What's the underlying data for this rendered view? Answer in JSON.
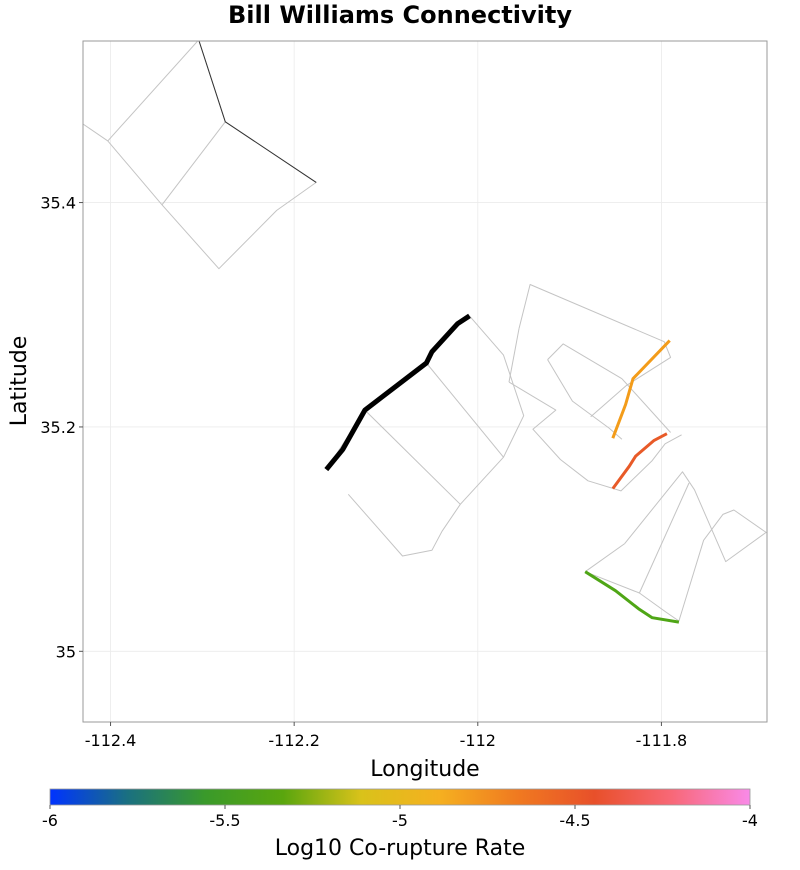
{
  "chart_data": {
    "type": "map",
    "title": "Bill Williams Connectivity",
    "xlabel": "Longitude",
    "ylabel": "Latitude",
    "xlim": [
      -112.43,
      -111.685
    ],
    "ylim": [
      34.937,
      35.544
    ],
    "x_ticks": [
      {
        "value": -112.4,
        "label": "-112.4"
      },
      {
        "value": -112.2,
        "label": "-112.2"
      },
      {
        "value": -112.0,
        "label": "-112"
      },
      {
        "value": -111.8,
        "label": "-111.8"
      }
    ],
    "y_ticks": [
      {
        "value": 35.4,
        "label": "35.4"
      },
      {
        "value": 35.2,
        "label": "35.2"
      },
      {
        "value": 35.0,
        "label": "35"
      }
    ],
    "grid": true,
    "fault_polygons": [
      {
        "name": "nw-section-a",
        "points": [
          [
            -112.43,
            35.47
          ],
          [
            -112.403,
            35.455
          ],
          [
            -112.344,
            35.398
          ],
          [
            -112.282,
            35.341
          ],
          [
            -112.219,
            35.393
          ],
          [
            -112.176,
            35.418
          ],
          [
            -112.275,
            35.472
          ],
          [
            -112.304,
            35.545
          ]
        ]
      },
      {
        "name": "nw-section-mid",
        "points": [
          [
            -112.403,
            35.455
          ],
          [
            -112.304,
            35.545
          ]
        ]
      },
      {
        "name": "nw-section-mid2",
        "points": [
          [
            -112.344,
            35.398
          ],
          [
            -112.275,
            35.472
          ]
        ]
      },
      {
        "name": "central-a",
        "points": [
          [
            -112.165,
            35.162
          ],
          [
            -112.123,
            35.215
          ],
          [
            -112.056,
            35.257
          ],
          [
            -112.05,
            35.267
          ],
          [
            -112.022,
            35.292
          ],
          [
            -112.009,
            35.299
          ],
          [
            -111.972,
            35.264
          ],
          [
            -111.95,
            35.21
          ],
          [
            -111.972,
            35.173
          ],
          [
            -112.019,
            35.131
          ],
          [
            -112.039,
            35.107
          ],
          [
            -112.05,
            35.09
          ],
          [
            -112.082,
            35.085
          ],
          [
            -112.141,
            35.14
          ]
        ]
      },
      {
        "name": "central-b",
        "points": [
          [
            -112.123,
            35.215
          ],
          [
            -112.019,
            35.131
          ]
        ]
      },
      {
        "name": "central-c",
        "points": [
          [
            -112.056,
            35.257
          ],
          [
            -111.972,
            35.173
          ]
        ]
      },
      {
        "name": "east-a",
        "points": [
          [
            -111.955,
            35.288
          ],
          [
            -111.943,
            35.327
          ],
          [
            -111.797,
            35.276
          ],
          [
            -111.79,
            35.262
          ],
          [
            -111.838,
            35.237
          ],
          [
            -111.877,
            35.209
          ]
        ]
      },
      {
        "name": "east-b",
        "points": [
          [
            -111.966,
            35.24
          ],
          [
            -111.955,
            35.288
          ]
        ]
      },
      {
        "name": "east-c",
        "points": [
          [
            -111.966,
            35.24
          ],
          [
            -111.915,
            35.215
          ],
          [
            -111.94,
            35.198
          ],
          [
            -111.91,
            35.171
          ],
          [
            -111.88,
            35.152
          ],
          [
            -111.844,
            35.143
          ],
          [
            -111.81,
            35.17
          ],
          [
            -111.796,
            35.185
          ],
          [
            -111.778,
            35.193
          ]
        ]
      },
      {
        "name": "east-d",
        "points": [
          [
            -111.924,
            35.26
          ],
          [
            -111.907,
            35.274
          ],
          [
            -111.843,
            35.243
          ]
        ]
      },
      {
        "name": "east-e",
        "points": [
          [
            -111.924,
            35.26
          ],
          [
            -111.897,
            35.223
          ],
          [
            -111.857,
            35.199
          ],
          [
            -111.843,
            35.189
          ]
        ]
      },
      {
        "name": "east-f",
        "points": [
          [
            -111.843,
            35.243
          ],
          [
            -111.79,
            35.195
          ]
        ]
      },
      {
        "name": "south-a",
        "points": [
          [
            -111.883,
            35.071
          ],
          [
            -111.824,
            35.052
          ],
          [
            -111.795,
            35.035
          ],
          [
            -111.781,
            35.027
          ],
          [
            -111.754,
            35.099
          ],
          [
            -111.733,
            35.122
          ],
          [
            -111.721,
            35.126
          ],
          [
            -111.686,
            35.106
          ],
          [
            -111.73,
            35.08
          ],
          [
            -111.764,
            35.144
          ],
          [
            -111.777,
            35.16
          ],
          [
            -111.84,
            35.096
          ]
        ]
      },
      {
        "name": "south-b",
        "points": [
          [
            -111.84,
            35.096
          ],
          [
            -111.883,
            35.071
          ]
        ]
      },
      {
        "name": "south-c",
        "points": [
          [
            -111.824,
            35.052
          ],
          [
            -111.77,
            35.15
          ]
        ]
      }
    ],
    "ruptures": [
      {
        "name": "bill-williams-source",
        "rate": null,
        "color": "#000000",
        "width": 5,
        "points": [
          [
            -112.165,
            35.162
          ],
          [
            -112.147,
            35.18
          ],
          [
            -112.123,
            35.215
          ],
          [
            -112.056,
            35.257
          ],
          [
            -112.05,
            35.267
          ],
          [
            -112.022,
            35.292
          ],
          [
            -112.009,
            35.299
          ]
        ]
      },
      {
        "name": "nw-trace",
        "rate": null,
        "color": "#333333",
        "width": 1,
        "points": [
          [
            -112.304,
            35.545
          ],
          [
            -112.275,
            35.472
          ],
          [
            -112.176,
            35.418
          ]
        ]
      },
      {
        "name": "east-trace-orange",
        "rate": -4.8,
        "color": "#F39C1A",
        "width": 3,
        "points": [
          [
            -111.853,
            35.19
          ],
          [
            -111.839,
            35.22
          ],
          [
            -111.831,
            35.243
          ],
          [
            -111.791,
            35.277
          ]
        ]
      },
      {
        "name": "east-trace-red",
        "rate": -4.5,
        "color": "#E85A28",
        "width": 3,
        "points": [
          [
            -111.853,
            35.145
          ],
          [
            -111.835,
            35.165
          ],
          [
            -111.828,
            35.174
          ],
          [
            -111.808,
            35.188
          ],
          [
            -111.794,
            35.194
          ]
        ]
      },
      {
        "name": "south-trace-green",
        "rate": -5.5,
        "color": "#4FA616",
        "width": 3,
        "points": [
          [
            -111.883,
            35.071
          ],
          [
            -111.85,
            35.054
          ],
          [
            -111.825,
            35.038
          ],
          [
            -111.81,
            35.03
          ],
          [
            -111.781,
            35.026
          ]
        ]
      }
    ],
    "colorbar": {
      "label": "Log10 Co-rupture Rate",
      "min": -6,
      "max": -4,
      "ticks": [
        {
          "value": -6,
          "label": "-6"
        },
        {
          "value": -5.5,
          "label": "-5.5"
        },
        {
          "value": -5,
          "label": "-5"
        },
        {
          "value": -4.5,
          "label": "-4.5"
        },
        {
          "value": -4,
          "label": "-4"
        }
      ],
      "stops": [
        "#0033ff",
        "#1a7080",
        "#3a9a2a",
        "#5aa60e",
        "#d9c21a",
        "#f5b020",
        "#f07a20",
        "#e8502a",
        "#f86878",
        "#f98ae8"
      ]
    }
  }
}
